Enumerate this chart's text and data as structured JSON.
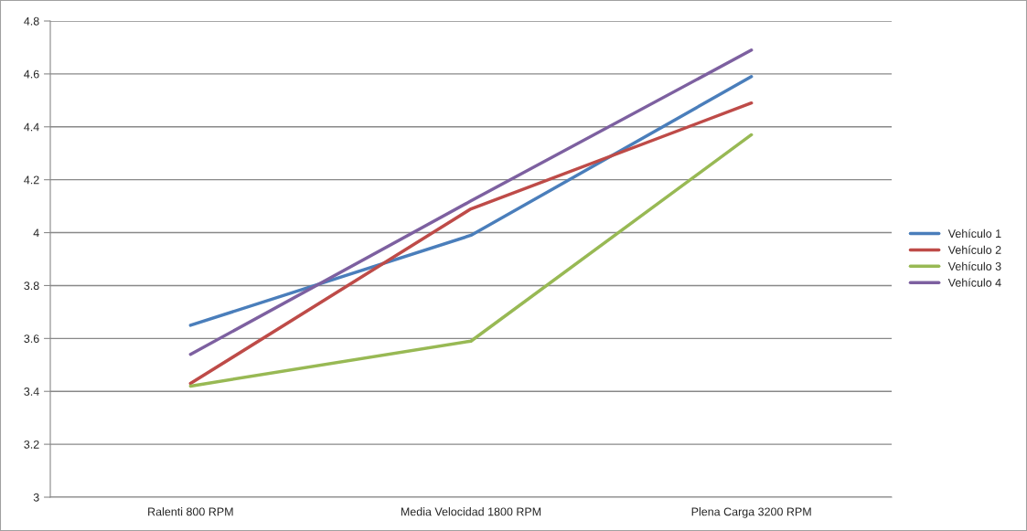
{
  "chart_data": {
    "type": "line",
    "categories": [
      "Ralenti 800 RPM",
      "Media Velocidad 1800 RPM",
      "Plena Carga 3200 RPM"
    ],
    "series": [
      {
        "name": "Vehículo 1",
        "color": "#4a7ebb",
        "values": [
          3.65,
          3.99,
          4.59
        ]
      },
      {
        "name": "Vehículo 2",
        "color": "#be4b48",
        "values": [
          3.43,
          4.09,
          4.49
        ]
      },
      {
        "name": "Vehículo 3",
        "color": "#98b954",
        "values": [
          3.42,
          3.59,
          4.37
        ]
      },
      {
        "name": "Vehículo 4",
        "color": "#7d60a0",
        "values": [
          3.54,
          4.12,
          4.69
        ]
      }
    ],
    "ylim": [
      3,
      4.8
    ],
    "yticks": [
      3,
      3.2,
      3.4,
      3.6,
      3.8,
      4,
      4.2,
      4.4,
      4.6,
      4.8
    ],
    "grid": "y",
    "legend": "right",
    "marker": "none",
    "line_style": "solid"
  }
}
